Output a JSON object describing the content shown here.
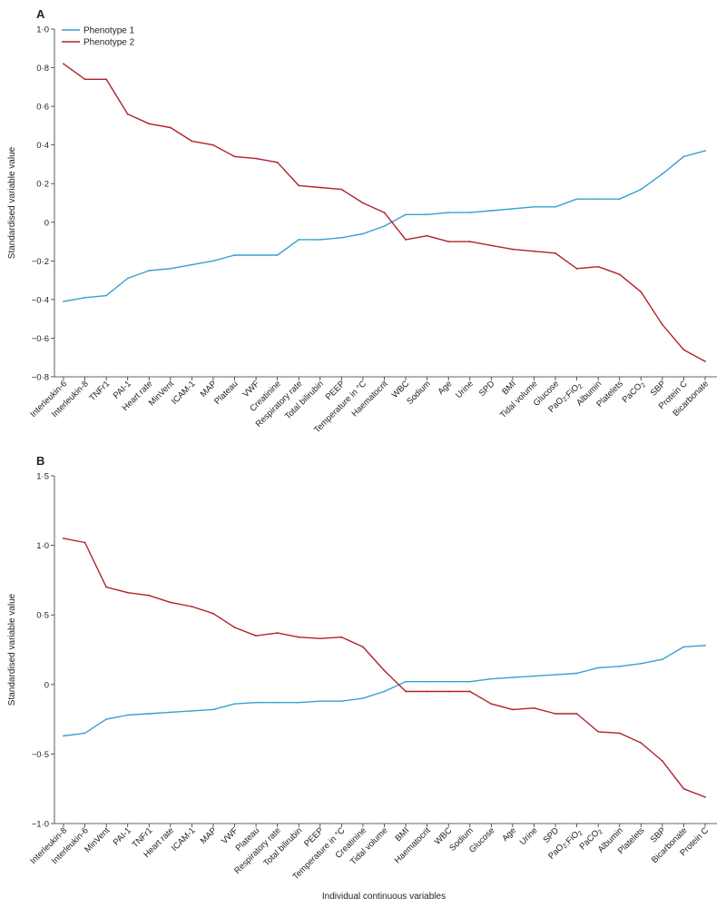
{
  "figure": {
    "xlabel": "Individual continuous variables",
    "legend_placement": "top-left"
  },
  "chart_data": [
    {
      "panel": "A",
      "type": "line",
      "ylabel": "Standardised variable value",
      "ylim": [
        -0.8,
        1.0
      ],
      "yticks": [
        -0.8,
        -0.6,
        -0.4,
        -0.2,
        0,
        0.2,
        0.4,
        0.6,
        0.8,
        1.0
      ],
      "ytick_labels": [
        "−0·8",
        "−0·6",
        "−0·4",
        "−0·2",
        "0",
        "0·2",
        "0·4",
        "0·6",
        "0·8",
        "1·0"
      ],
      "categories": [
        "Interleukin-6",
        "Interleukin-8",
        "TNFr1",
        "PAI-1",
        "Heart rate",
        "MinVent",
        "ICAM-1",
        "MAP",
        "Plateau",
        "VWF",
        "Creatinine",
        "Respiratory rate",
        "Total bilirubin",
        "PEEP",
        "Temperature in °C",
        "Haematocrit",
        "WBC",
        "Sodium",
        "Age",
        "Urine",
        "SPD",
        "BMI",
        "Tidal volume",
        "Glucose",
        "PaO2:FiO2",
        "Albumin",
        "Platelets",
        "PaCO2",
        "SBP",
        "Protein C",
        "Bicarbonate"
      ],
      "series": [
        {
          "name": "Phenotype 1",
          "color": "#3a9fcf",
          "values": [
            -0.41,
            -0.39,
            -0.38,
            -0.29,
            -0.25,
            -0.24,
            -0.22,
            -0.2,
            -0.17,
            -0.17,
            -0.17,
            -0.09,
            -0.09,
            -0.08,
            -0.06,
            -0.02,
            0.04,
            0.04,
            0.05,
            0.05,
            0.06,
            0.07,
            0.08,
            0.08,
            0.12,
            0.12,
            0.12,
            0.17,
            0.25,
            0.34,
            0.37
          ]
        },
        {
          "name": "Phenotype 2",
          "color": "#b3202b",
          "values": [
            0.82,
            0.74,
            0.74,
            0.56,
            0.51,
            0.49,
            0.42,
            0.4,
            0.34,
            0.33,
            0.31,
            0.19,
            0.18,
            0.17,
            0.1,
            0.05,
            -0.09,
            -0.07,
            -0.1,
            -0.1,
            -0.12,
            -0.14,
            -0.15,
            -0.16,
            -0.24,
            -0.23,
            -0.27,
            -0.36,
            -0.53,
            -0.66,
            -0.72
          ]
        }
      ]
    },
    {
      "panel": "B",
      "type": "line",
      "ylabel": "Standardised variable value",
      "ylim": [
        -1.0,
        1.5
      ],
      "yticks": [
        -1.0,
        -0.5,
        0,
        0.5,
        1.0,
        1.5
      ],
      "ytick_labels": [
        "−1·0",
        "−0·5",
        "0",
        "0·5",
        "1·0",
        "1·5"
      ],
      "categories": [
        "Interleukin-8",
        "Interleukin-6",
        "MinVent",
        "PAI-1",
        "TNFr1",
        "Heart rate",
        "ICAM-1",
        "MAP",
        "VWF",
        "Plateau",
        "Respiratory rate",
        "Total bilirubin",
        "PEEP",
        "Temperature in °C",
        "Creatinine",
        "Tidal volume",
        "BMI",
        "Haematocrit",
        "WBC",
        "Sodium",
        "Glucose",
        "Age",
        "Urine",
        "SPD",
        "PaO2:FiO2",
        "PaCO2",
        "Albumin",
        "Platelets",
        "SBP",
        "Bicarbonate",
        "Protein C"
      ],
      "series": [
        {
          "name": "Phenotype 1",
          "color": "#3a9fcf",
          "values": [
            -0.37,
            -0.35,
            -0.25,
            -0.22,
            -0.21,
            -0.2,
            -0.19,
            -0.18,
            -0.14,
            -0.13,
            -0.13,
            -0.13,
            -0.12,
            -0.12,
            -0.1,
            -0.05,
            0.02,
            0.02,
            0.02,
            0.02,
            0.04,
            0.05,
            0.06,
            0.07,
            0.08,
            0.12,
            0.13,
            0.15,
            0.18,
            0.27,
            0.28
          ]
        },
        {
          "name": "Phenotype 2",
          "color": "#b3202b",
          "values": [
            1.05,
            1.02,
            0.7,
            0.66,
            0.64,
            0.59,
            0.56,
            0.51,
            0.41,
            0.35,
            0.37,
            0.34,
            0.33,
            0.34,
            0.27,
            0.1,
            -0.05,
            -0.05,
            -0.05,
            -0.05,
            -0.14,
            -0.18,
            -0.17,
            -0.21,
            -0.21,
            -0.34,
            -0.35,
            -0.42,
            -0.55,
            -0.75,
            -0.81
          ]
        }
      ]
    }
  ]
}
